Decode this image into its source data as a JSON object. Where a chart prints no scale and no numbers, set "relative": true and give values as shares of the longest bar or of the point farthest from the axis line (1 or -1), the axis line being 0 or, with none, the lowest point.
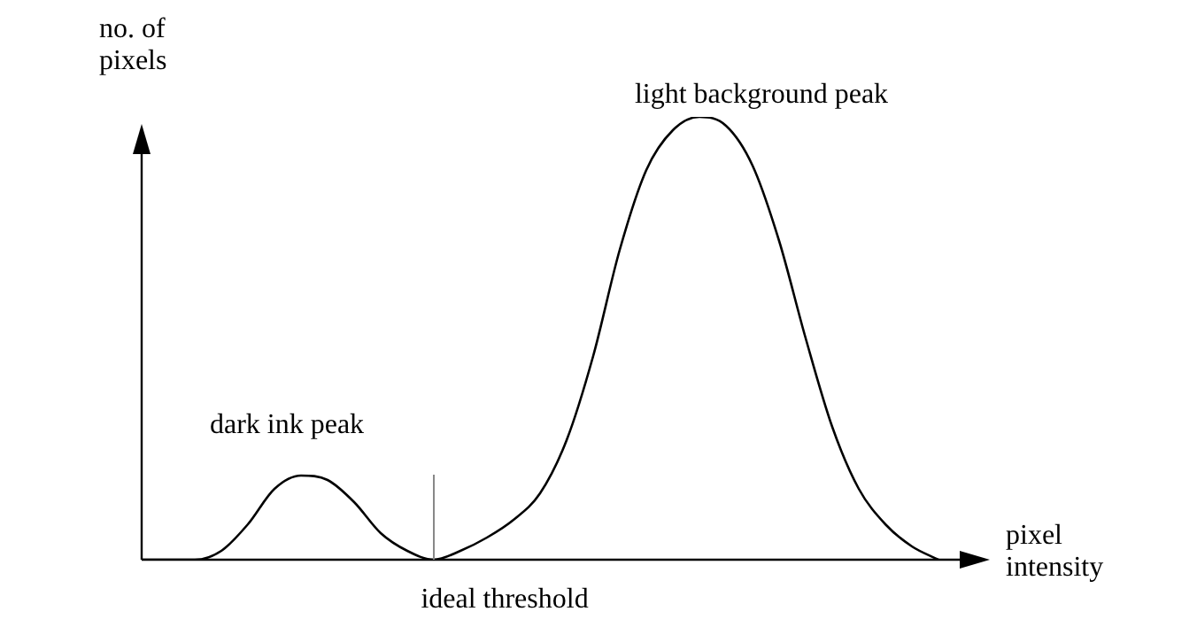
{
  "chart_data": {
    "type": "line",
    "relative": true,
    "color": "#000000",
    "marker": "none",
    "legend": false,
    "categories": [
      null,
      null,
      null,
      null,
      null,
      null,
      null,
      null,
      null,
      null,
      null,
      null,
      null,
      null,
      null,
      null,
      null,
      null,
      null,
      null,
      null,
      null,
      null,
      null,
      null,
      null,
      null,
      null,
      null,
      null,
      null
    ],
    "values": [
      0,
      0,
      0,
      0.02,
      0.08,
      0.16,
      0.19,
      0.18,
      0.13,
      0.06,
      0.02,
      0,
      0.02,
      0.05,
      0.09,
      0.15,
      0.27,
      0.46,
      0.7,
      0.88,
      0.97,
      1,
      0.98,
      0.89,
      0.72,
      0.5,
      0.3,
      0.16,
      0.08,
      0.03,
      0
    ],
    "xlabel": "pixel intensity",
    "ylabel": "no. of pixels",
    "annotations": [
      "dark ink peak",
      "light background peak",
      "ideal threshold"
    ]
  }
}
